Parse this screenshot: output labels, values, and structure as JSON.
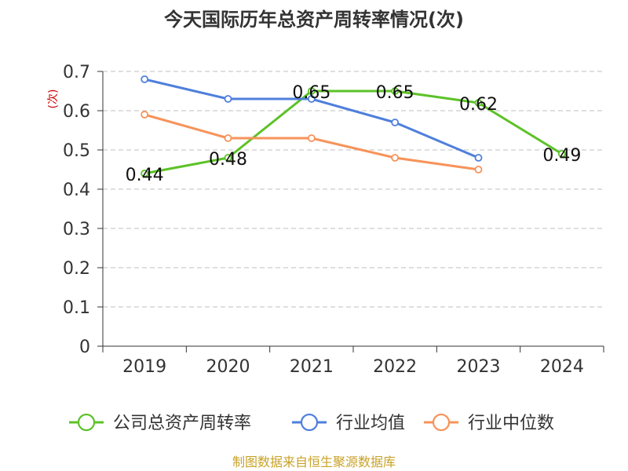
{
  "chart_data": {
    "type": "line",
    "title": "今天国际历年总资产周转率情况(次)",
    "ylabel": "(次)",
    "categories": [
      "2019",
      "2020",
      "2021",
      "2022",
      "2023",
      "2024"
    ],
    "ylim": [
      0,
      0.7
    ],
    "yticks": [
      0,
      0.1,
      0.2,
      0.3,
      0.4,
      0.5,
      0.6,
      0.7
    ],
    "grid": true,
    "legend_position": "bottom",
    "series": [
      {
        "name": "公司总资产周转率",
        "color": "#5cc227",
        "values": [
          0.44,
          0.48,
          0.65,
          0.65,
          0.62,
          0.49
        ],
        "labels": [
          "0.44",
          "0.48",
          "0.65",
          "0.65",
          "0.62",
          "0.49"
        ]
      },
      {
        "name": "行业均值",
        "color": "#4f7fdc",
        "values": [
          0.68,
          0.63,
          0.63,
          0.57,
          0.48,
          null
        ]
      },
      {
        "name": "行业中位数",
        "color": "#f7935a",
        "values": [
          0.59,
          0.53,
          0.53,
          0.48,
          0.45,
          null
        ]
      }
    ]
  },
  "source": "制图数据来自恒生聚源数据库"
}
